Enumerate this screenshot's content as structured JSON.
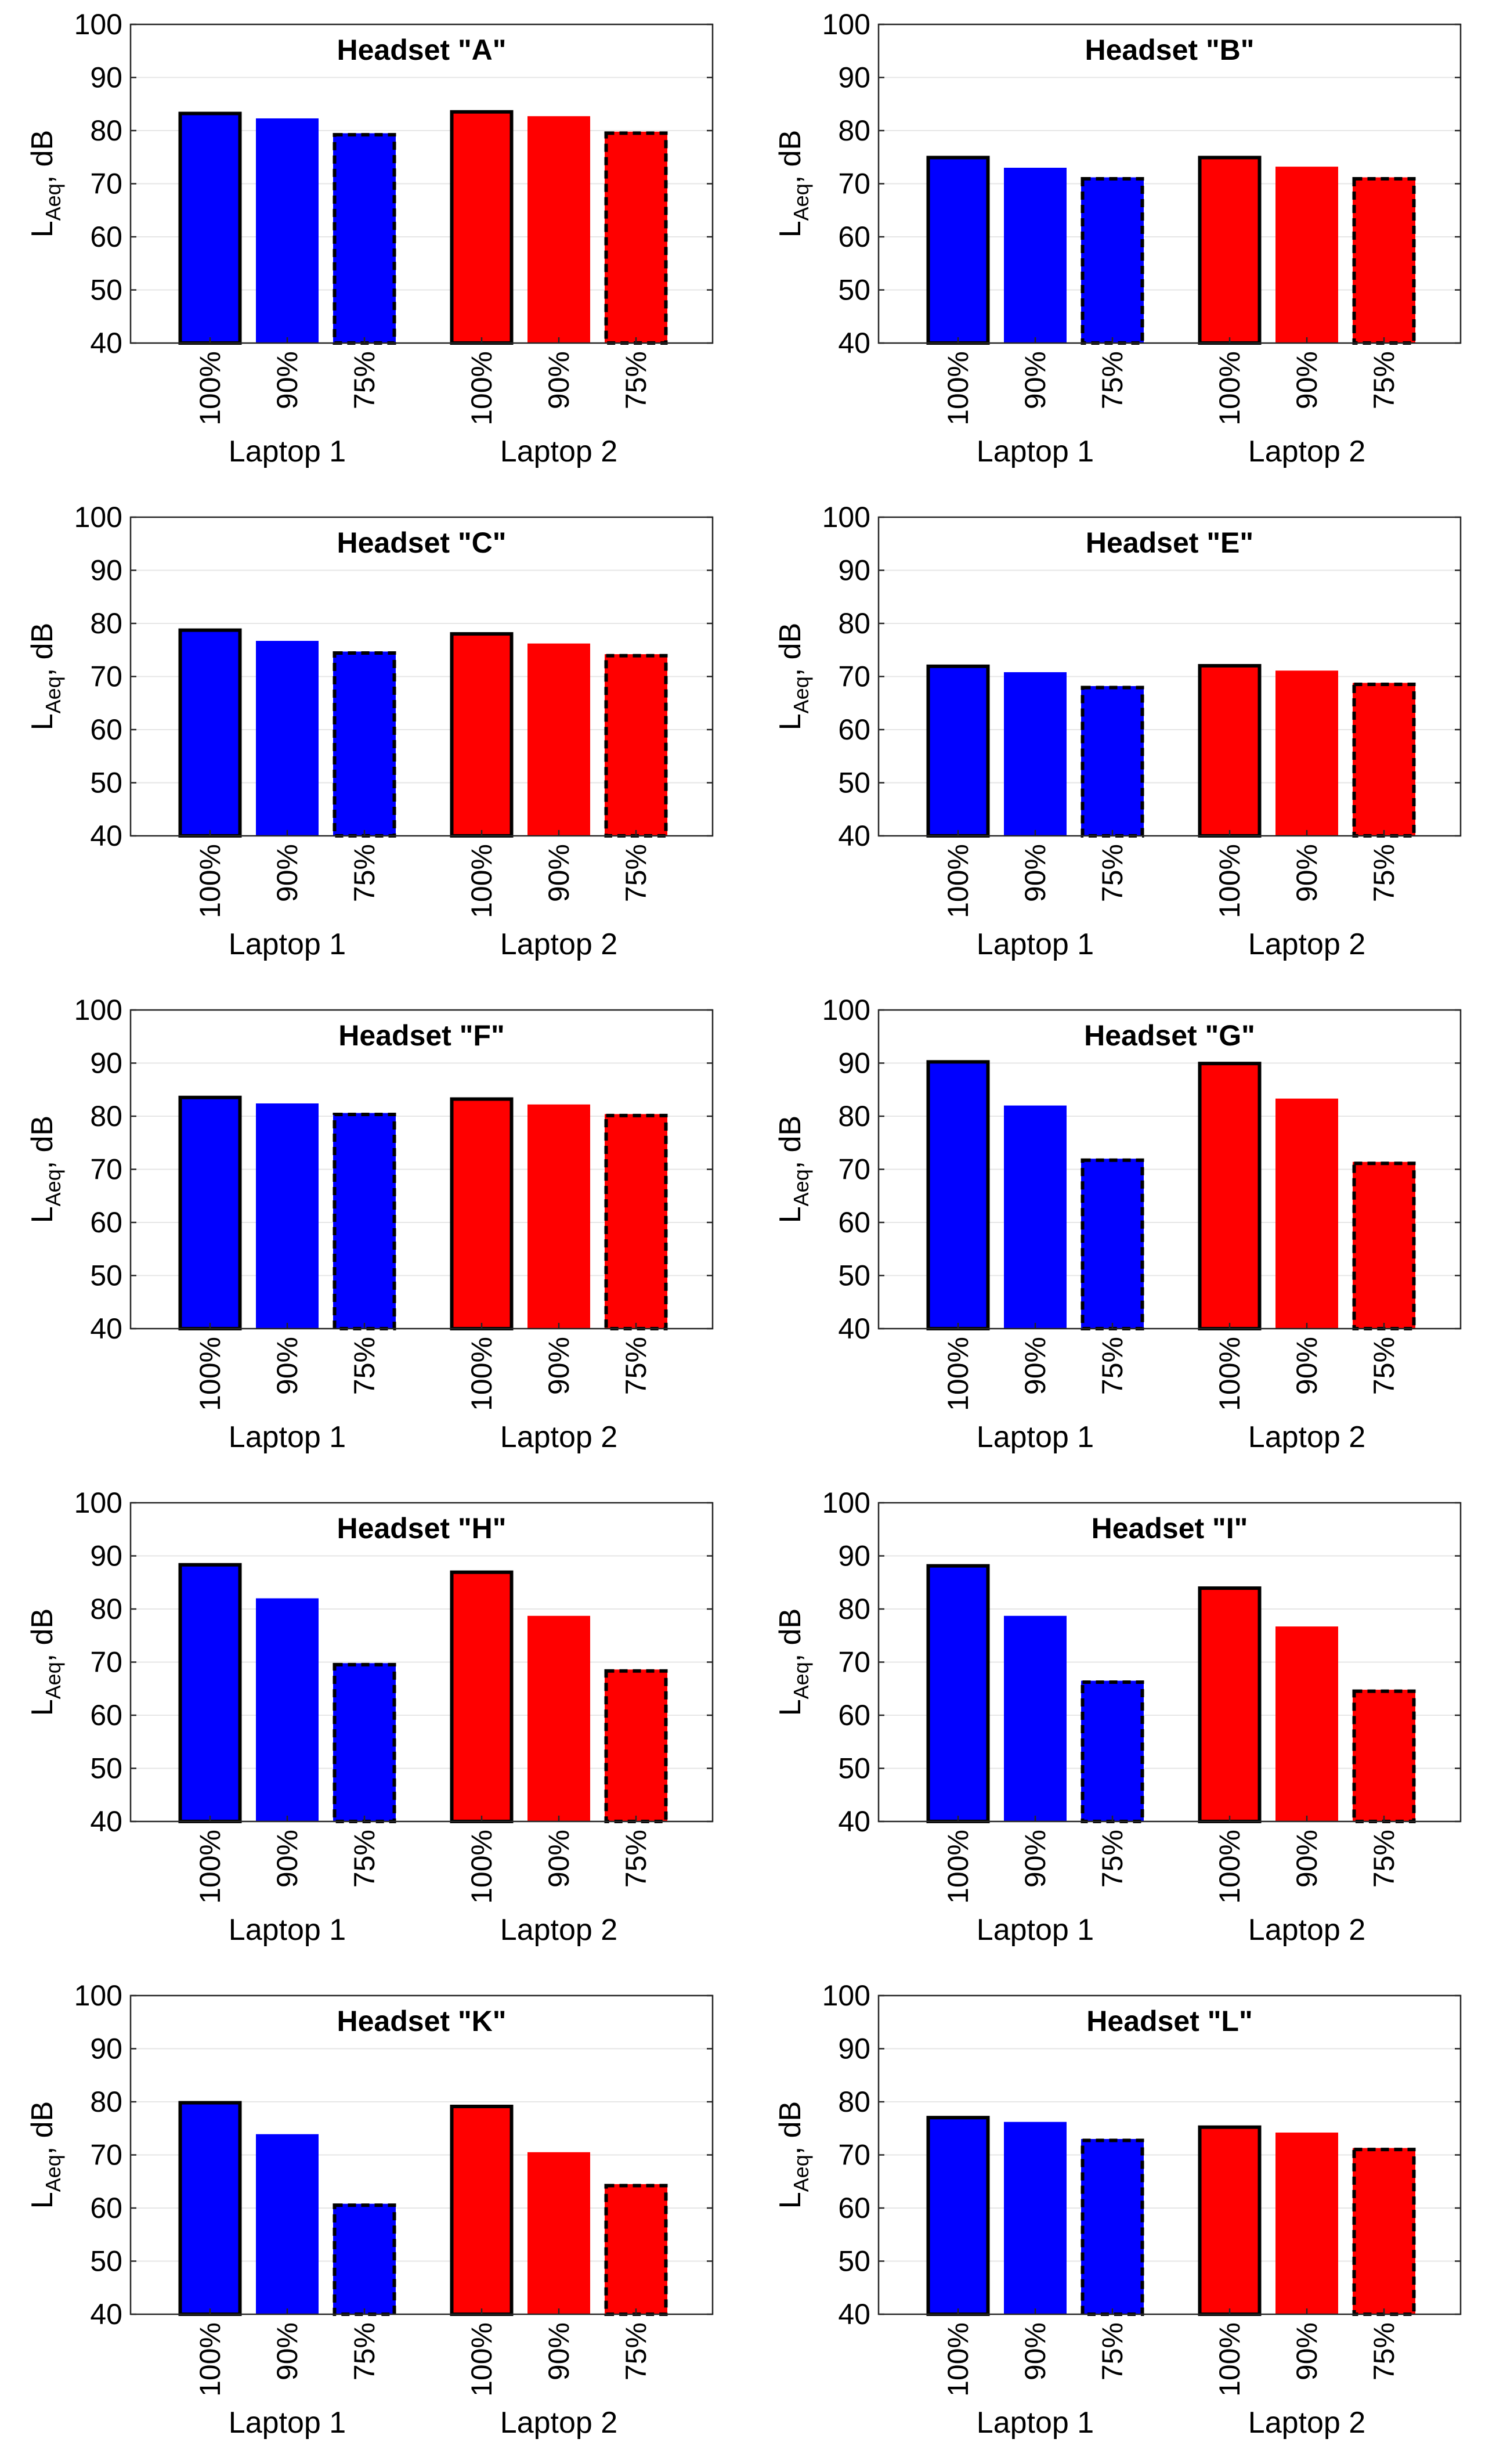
{
  "chart_data": {
    "type": "bar",
    "ylabel": "L",
    "ylabel_subscript": "Aeq",
    "ylabel_suffix": ", dB",
    "ylim": [
      40,
      100
    ],
    "yticks": [
      "40",
      "50",
      "60",
      "70",
      "80",
      "90",
      "100"
    ],
    "categories": [
      "100%",
      "90%",
      "75%"
    ],
    "groups": [
      "Laptop 1",
      "Laptop 2"
    ],
    "colors": {
      "Laptop 1": "#0000ff",
      "Laptop 2": "#ff0000"
    },
    "panels": [
      {
        "title": "Headset \"A\"",
        "series": [
          {
            "name": "Laptop 1",
            "values": [
              83.5,
              82.3,
              79.5
            ]
          },
          {
            "name": "Laptop 2",
            "values": [
              83.8,
              82.7,
              79.8
            ]
          }
        ]
      },
      {
        "title": "Headset \"B\"",
        "series": [
          {
            "name": "Laptop 1",
            "values": [
              75.2,
              73.0,
              71.2
            ]
          },
          {
            "name": "Laptop 2",
            "values": [
              75.2,
              73.2,
              71.2
            ]
          }
        ]
      },
      {
        "title": "Headset \"C\"",
        "series": [
          {
            "name": "Laptop 1",
            "values": [
              79.0,
              76.7,
              74.7
            ]
          },
          {
            "name": "Laptop 2",
            "values": [
              78.3,
              76.2,
              74.2
            ]
          }
        ]
      },
      {
        "title": "Headset \"E\"",
        "series": [
          {
            "name": "Laptop 1",
            "values": [
              72.2,
              70.8,
              68.2
            ]
          },
          {
            "name": "Laptop 2",
            "values": [
              72.3,
              71.1,
              68.8
            ]
          }
        ]
      },
      {
        "title": "Headset \"F\"",
        "series": [
          {
            "name": "Laptop 1",
            "values": [
              83.8,
              82.4,
              80.6
            ]
          },
          {
            "name": "Laptop 2",
            "values": [
              83.5,
              82.2,
              80.4
            ]
          }
        ]
      },
      {
        "title": "Headset \"G\"",
        "series": [
          {
            "name": "Laptop 1",
            "values": [
              90.5,
              82.0,
              72.0
            ]
          },
          {
            "name": "Laptop 2",
            "values": [
              90.2,
              83.3,
              71.4
            ]
          }
        ]
      },
      {
        "title": "Headset \"H\"",
        "series": [
          {
            "name": "Laptop 1",
            "values": [
              88.6,
              82.0,
              69.8
            ]
          },
          {
            "name": "Laptop 2",
            "values": [
              87.2,
              78.7,
              68.6
            ]
          }
        ]
      },
      {
        "title": "Headset \"I\"",
        "series": [
          {
            "name": "Laptop 1",
            "values": [
              88.4,
              78.7,
              66.5
            ]
          },
          {
            "name": "Laptop 2",
            "values": [
              84.2,
              76.7,
              64.8
            ]
          }
        ]
      },
      {
        "title": "Headset \"K\"",
        "series": [
          {
            "name": "Laptop 1",
            "values": [
              80.1,
              73.9,
              60.8
            ]
          },
          {
            "name": "Laptop 2",
            "values": [
              79.4,
              70.5,
              64.5
            ]
          }
        ]
      },
      {
        "title": "Headset \"L\"",
        "series": [
          {
            "name": "Laptop 1",
            "values": [
              77.3,
              76.2,
              73.0
            ]
          },
          {
            "name": "Laptop 2",
            "values": [
              75.5,
              74.2,
              71.3
            ]
          }
        ]
      }
    ]
  }
}
